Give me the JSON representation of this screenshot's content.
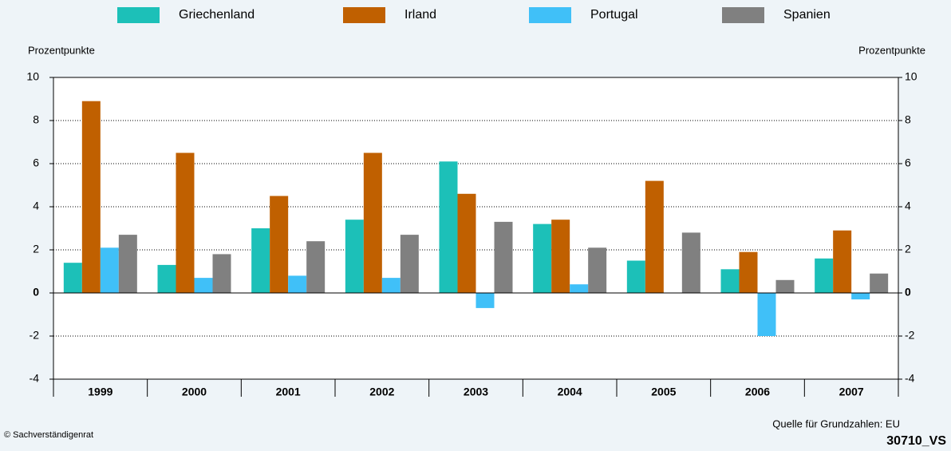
{
  "chart_data": {
    "type": "bar",
    "y_label": "Prozentpunkte",
    "y2_label": "Prozentpunkte",
    "categories": [
      "1999",
      "2000",
      "2001",
      "2002",
      "2003",
      "2004",
      "2005",
      "2006",
      "2007"
    ],
    "series": [
      {
        "name": "Griechenland",
        "color": "#1cc0b8",
        "values": [
          1.4,
          1.3,
          3.0,
          3.4,
          6.1,
          3.2,
          1.5,
          1.1,
          1.6
        ]
      },
      {
        "name": "Irland",
        "color": "#c06000",
        "values": [
          8.9,
          6.5,
          4.5,
          6.5,
          4.6,
          3.4,
          5.2,
          1.9,
          2.9
        ]
      },
      {
        "name": "Portugal",
        "color": "#40c0f8",
        "values": [
          2.1,
          0.7,
          0.8,
          0.7,
          -0.7,
          0.4,
          0.0,
          -2.0,
          -0.3
        ]
      },
      {
        "name": "Spanien",
        "color": "#808080",
        "values": [
          2.7,
          1.8,
          2.4,
          2.7,
          3.3,
          2.1,
          2.8,
          0.6,
          0.9
        ]
      }
    ],
    "ylim": [
      -4,
      10
    ],
    "yticks": [
      -4,
      -2,
      0,
      2,
      4,
      6,
      8,
      10
    ],
    "y2lim": [
      -4,
      10
    ],
    "y2ticks": [
      -4,
      -2,
      0,
      2,
      4,
      6,
      8,
      10
    ],
    "grid": true,
    "source": "Quelle für Grundzahlen: EU",
    "copyright": "© Sachverständigenrat",
    "code": "30710_VS"
  }
}
